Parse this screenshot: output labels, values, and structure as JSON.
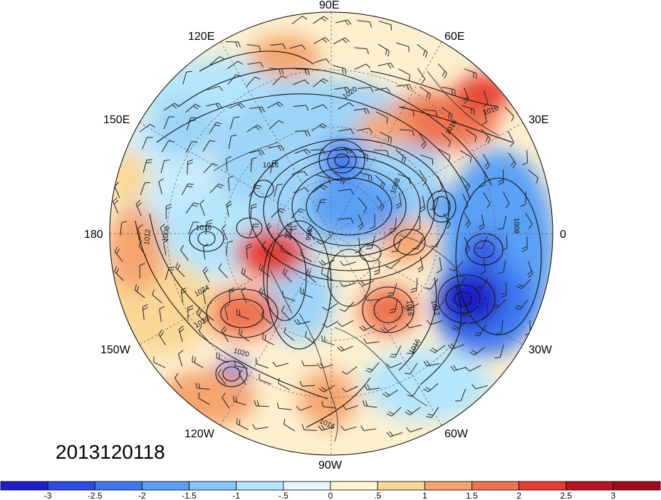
{
  "date_stamp": "2013120118",
  "longitude_labels": {
    "top": "90E",
    "upper_left": "120E",
    "upper_right": "60E",
    "left_upper": "150E",
    "right_upper": "30E",
    "left": "180",
    "right": "0",
    "left_lower": "150W",
    "right_lower": "30W",
    "lower_left": "120W",
    "lower_right": "60W",
    "bottom": "90W"
  },
  "contour_labels": [
    "1020",
    "1016",
    "1016",
    "1008",
    "1012",
    "1008",
    "1016",
    "996",
    "1016",
    "1024",
    "1020",
    "1020",
    "1016",
    "1012",
    "1008",
    "1016",
    "1016",
    "1016"
  ],
  "colorbar": {
    "ticks": [
      "-3",
      "-2.5",
      "-2",
      "-1.5",
      "-1",
      "-.5",
      "0",
      ".5",
      "1",
      "1.5",
      "2",
      "2.5",
      "3"
    ],
    "colors": [
      "#1e1ecc",
      "#2d4be6",
      "#3c78f0",
      "#5aa0f5",
      "#82c8fa",
      "#b4e6fc",
      "#e1f5fa",
      "#fff5d2",
      "#fad796",
      "#f5a56e",
      "#ee7350",
      "#e63c32",
      "#b91423",
      "#a00a1e"
    ]
  }
}
